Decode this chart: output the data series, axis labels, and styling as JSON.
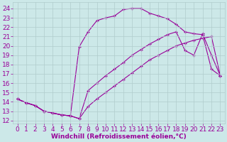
{
  "bg_color": "#cce8e8",
  "line_color": "#990099",
  "grid_color": "#b0cccc",
  "font_color": "#990099",
  "xlabel": "Windchill (Refroidissement éolien,°C)",
  "font_size": 6.5,
  "xlim": [
    -0.5,
    23.5
  ],
  "ylim": [
    11.7,
    24.7
  ],
  "xticks": [
    0,
    1,
    2,
    3,
    4,
    5,
    6,
    7,
    8,
    9,
    10,
    11,
    12,
    13,
    14,
    15,
    16,
    17,
    18,
    19,
    20,
    21,
    22,
    23
  ],
  "yticks": [
    12,
    13,
    14,
    15,
    16,
    17,
    18,
    19,
    20,
    21,
    22,
    23,
    24
  ],
  "line1_x": [
    0,
    1,
    2,
    3,
    4,
    5,
    6,
    7,
    8,
    9,
    10,
    11,
    12,
    13,
    14,
    15,
    16,
    17,
    18,
    19,
    20,
    21,
    22,
    23
  ],
  "line1_y": [
    14.3,
    13.9,
    13.6,
    13.0,
    12.8,
    12.6,
    12.5,
    12.2,
    15.2,
    16.0,
    16.8,
    17.5,
    18.2,
    19.0,
    19.6,
    20.2,
    20.7,
    21.2,
    21.5,
    19.5,
    19.0,
    21.3,
    19.0,
    16.8
  ],
  "line2_x": [
    0,
    1,
    2,
    3,
    4,
    5,
    6,
    7,
    8,
    9,
    10,
    11,
    12,
    13,
    14,
    15,
    16,
    17,
    18,
    19,
    20,
    21,
    22,
    23
  ],
  "line2_y": [
    14.3,
    13.9,
    13.6,
    13.0,
    12.8,
    12.6,
    12.5,
    12.2,
    13.5,
    14.3,
    15.0,
    15.7,
    16.4,
    17.1,
    17.8,
    18.5,
    19.0,
    19.5,
    20.0,
    20.3,
    20.6,
    20.8,
    21.0,
    16.8
  ],
  "line3_x": [
    0,
    1,
    2,
    3,
    4,
    5,
    6,
    7,
    8,
    9,
    10,
    11,
    12,
    13,
    14,
    15,
    16,
    17,
    18,
    19,
    20,
    21,
    22,
    23
  ],
  "line3_y": [
    14.3,
    13.9,
    13.6,
    13.0,
    12.8,
    12.6,
    12.5,
    19.9,
    21.5,
    22.7,
    23.0,
    23.2,
    23.9,
    24.0,
    24.0,
    23.5,
    23.2,
    22.9,
    22.3,
    21.5,
    21.3,
    21.2,
    17.5,
    16.8
  ]
}
